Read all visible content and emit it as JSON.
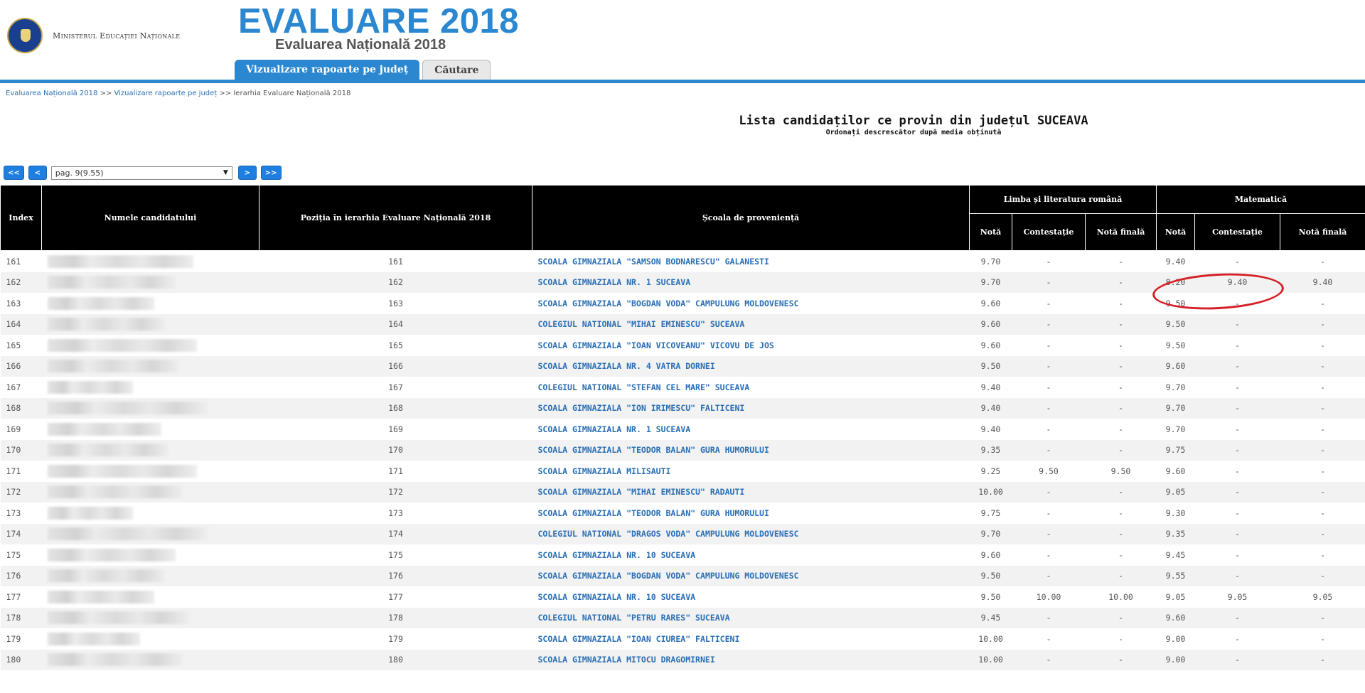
{
  "header": {
    "ministry": "Ministerul Educației Naționale",
    "title": "EVALUARE 2018",
    "subtitle": "Evaluarea Națională 2018",
    "tabs": [
      {
        "label": "Vizualizare rapoarte pe județ",
        "active": true
      },
      {
        "label": "Căutare",
        "active": false
      }
    ]
  },
  "breadcrumb": {
    "items": [
      "Evaluarea Națională 2018",
      "Vizualizare rapoarte pe județ",
      "Ierarhia Evaluare Națională 2018"
    ],
    "separator": ">>"
  },
  "heading": {
    "title": "Lista candidaților ce provin din județul SUCEAVA",
    "subtitle": "Ordonați descrescător după media obținută"
  },
  "pager": {
    "first": "<<",
    "prev": "<",
    "next": ">",
    "last": ">>",
    "selected": "pag. 9(9.55)"
  },
  "table": {
    "headers": {
      "index": "Index",
      "name": "Numele candidatului",
      "position": "Poziția în ierarhia Evaluare Națională 2018",
      "school": "Școala de proveniență",
      "group_ro": "Limba și literatura română",
      "group_mat": "Matematică",
      "nota": "Notă",
      "contestatie": "Contestație",
      "nota_finala": "Notă finală"
    },
    "rows": [
      {
        "index": "161",
        "position": "161",
        "school": "SCOALA GIMNAZIALA \"SAMSON BODNARESCU\" GALANESTI",
        "ro_nota": "9.70",
        "ro_cont": "-",
        "ro_fin": "-",
        "mat_nota": "9.40",
        "mat_cont": "-",
        "mat_fin": "-"
      },
      {
        "index": "162",
        "position": "162",
        "school": "SCOALA GIMNAZIALA NR. 1 SUCEAVA",
        "ro_nota": "9.70",
        "ro_cont": "-",
        "ro_fin": "-",
        "mat_nota": "8.20",
        "mat_cont": "9.40",
        "mat_fin": "9.40"
      },
      {
        "index": "163",
        "position": "163",
        "school": "SCOALA GIMNAZIALA \"BOGDAN VODA\" CAMPULUNG MOLDOVENESC",
        "ro_nota": "9.60",
        "ro_cont": "-",
        "ro_fin": "-",
        "mat_nota": "9.50",
        "mat_cont": "-",
        "mat_fin": "-"
      },
      {
        "index": "164",
        "position": "164",
        "school": "COLEGIUL NATIONAL \"MIHAI EMINESCU\" SUCEAVA",
        "ro_nota": "9.60",
        "ro_cont": "-",
        "ro_fin": "-",
        "mat_nota": "9.50",
        "mat_cont": "-",
        "mat_fin": "-"
      },
      {
        "index": "165",
        "position": "165",
        "school": "SCOALA GIMNAZIALA \"IOAN VICOVEANU\" VICOVU DE JOS",
        "ro_nota": "9.60",
        "ro_cont": "-",
        "ro_fin": "-",
        "mat_nota": "9.50",
        "mat_cont": "-",
        "mat_fin": "-"
      },
      {
        "index": "166",
        "position": "166",
        "school": "SCOALA GIMNAZIALA NR. 4 VATRA DORNEI",
        "ro_nota": "9.50",
        "ro_cont": "-",
        "ro_fin": "-",
        "mat_nota": "9.60",
        "mat_cont": "-",
        "mat_fin": "-"
      },
      {
        "index": "167",
        "position": "167",
        "school": "COLEGIUL NATIONAL \"STEFAN CEL MARE\" SUCEAVA",
        "ro_nota": "9.40",
        "ro_cont": "-",
        "ro_fin": "-",
        "mat_nota": "9.70",
        "mat_cont": "-",
        "mat_fin": "-"
      },
      {
        "index": "168",
        "position": "168",
        "school": "SCOALA GIMNAZIALA \"ION IRIMESCU\" FALTICENI",
        "ro_nota": "9.40",
        "ro_cont": "-",
        "ro_fin": "-",
        "mat_nota": "9.70",
        "mat_cont": "-",
        "mat_fin": "-"
      },
      {
        "index": "169",
        "position": "169",
        "school": "SCOALA GIMNAZIALA NR. 1 SUCEAVA",
        "ro_nota": "9.40",
        "ro_cont": "-",
        "ro_fin": "-",
        "mat_nota": "9.70",
        "mat_cont": "-",
        "mat_fin": "-"
      },
      {
        "index": "170",
        "position": "170",
        "school": "SCOALA GIMNAZIALA \"TEODOR BALAN\" GURA HUMORULUI",
        "ro_nota": "9.35",
        "ro_cont": "-",
        "ro_fin": "-",
        "mat_nota": "9.75",
        "mat_cont": "-",
        "mat_fin": "-"
      },
      {
        "index": "171",
        "position": "171",
        "school": "SCOALA GIMNAZIALA MILISAUTI",
        "ro_nota": "9.25",
        "ro_cont": "9.50",
        "ro_fin": "9.50",
        "mat_nota": "9.60",
        "mat_cont": "-",
        "mat_fin": "-"
      },
      {
        "index": "172",
        "position": "172",
        "school": "SCOALA GIMNAZIALA \"MIHAI EMINESCU\" RADAUTI",
        "ro_nota": "10.00",
        "ro_cont": "-",
        "ro_fin": "-",
        "mat_nota": "9.05",
        "mat_cont": "-",
        "mat_fin": "-"
      },
      {
        "index": "173",
        "position": "173",
        "school": "SCOALA GIMNAZIALA \"TEODOR BALAN\" GURA HUMORULUI",
        "ro_nota": "9.75",
        "ro_cont": "-",
        "ro_fin": "-",
        "mat_nota": "9.30",
        "mat_cont": "-",
        "mat_fin": "-"
      },
      {
        "index": "174",
        "position": "174",
        "school": "COLEGIUL NATIONAL \"DRAGOS VODA\" CAMPULUNG MOLDOVENESC",
        "ro_nota": "9.70",
        "ro_cont": "-",
        "ro_fin": "-",
        "mat_nota": "9.35",
        "mat_cont": "-",
        "mat_fin": "-"
      },
      {
        "index": "175",
        "position": "175",
        "school": "SCOALA GIMNAZIALA NR. 10 SUCEAVA",
        "ro_nota": "9.60",
        "ro_cont": "-",
        "ro_fin": "-",
        "mat_nota": "9.45",
        "mat_cont": "-",
        "mat_fin": "-"
      },
      {
        "index": "176",
        "position": "176",
        "school": "SCOALA GIMNAZIALA \"BOGDAN VODA\" CAMPULUNG MOLDOVENESC",
        "ro_nota": "9.50",
        "ro_cont": "-",
        "ro_fin": "-",
        "mat_nota": "9.55",
        "mat_cont": "-",
        "mat_fin": "-"
      },
      {
        "index": "177",
        "position": "177",
        "school": "SCOALA GIMNAZIALA NR. 10 SUCEAVA",
        "ro_nota": "9.50",
        "ro_cont": "10.00",
        "ro_fin": "10.00",
        "mat_nota": "9.05",
        "mat_cont": "9.05",
        "mat_fin": "9.05"
      },
      {
        "index": "178",
        "position": "178",
        "school": "COLEGIUL NATIONAL \"PETRU RARES\" SUCEAVA",
        "ro_nota": "9.45",
        "ro_cont": "-",
        "ro_fin": "-",
        "mat_nota": "9.60",
        "mat_cont": "-",
        "mat_fin": "-"
      },
      {
        "index": "179",
        "position": "179",
        "school": "SCOALA GIMNAZIALA \"IOAN CIUREA\" FALTICENI",
        "ro_nota": "10.00",
        "ro_cont": "-",
        "ro_fin": "-",
        "mat_nota": "9.00",
        "mat_cont": "-",
        "mat_fin": "-"
      },
      {
        "index": "180",
        "position": "180",
        "school": "SCOALA GIMNAZIALA MITOCU DRAGOMIRNEI",
        "ro_nota": "10.00",
        "ro_cont": "-",
        "ro_fin": "-",
        "mat_nota": "9.00",
        "mat_cont": "-",
        "mat_fin": "-"
      }
    ]
  },
  "colors": {
    "accent": "#2a87d0",
    "link": "#2a6fb5",
    "header_bg": "#000000",
    "annotation": "#d61f26"
  }
}
